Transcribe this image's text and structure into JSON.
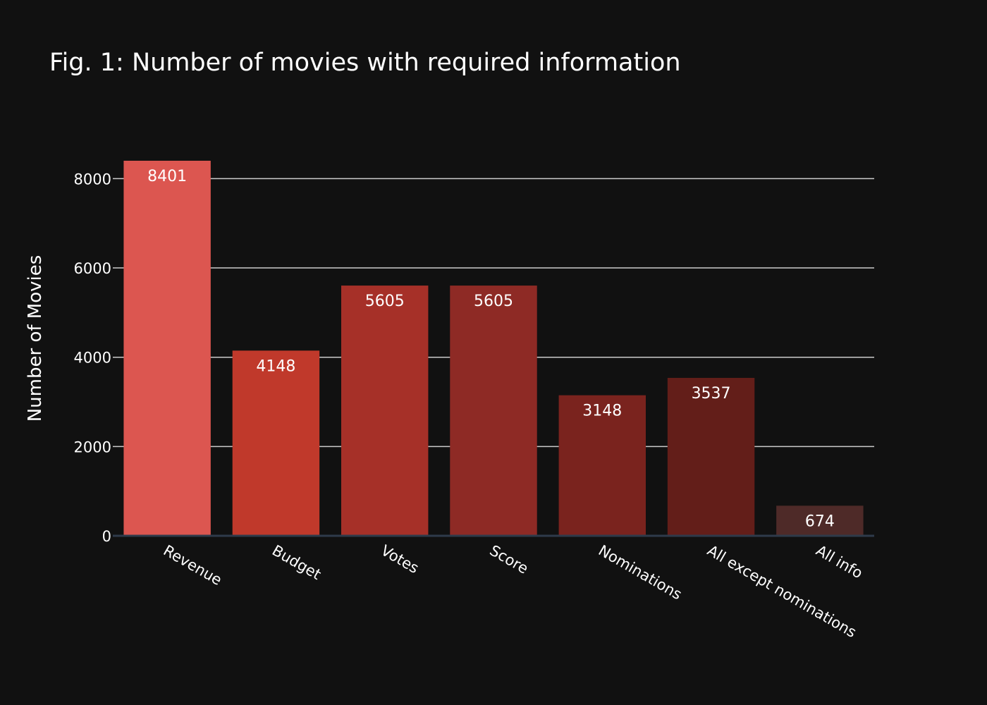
{
  "chart_data": {
    "type": "bar",
    "title": "Fig. 1: Number of movies with required information",
    "xlabel": "",
    "ylabel": "Number of Movies",
    "categories": [
      "Revenue",
      "Budget",
      "Votes",
      "Score",
      "Nominations",
      "All except nominations",
      "All info"
    ],
    "values": [
      8401,
      4148,
      5605,
      5605,
      3148,
      3537,
      674
    ],
    "data_labels": [
      "8401",
      "4148",
      "5605",
      "5605",
      "3148",
      "3537",
      "674"
    ],
    "bar_colors": [
      "#dc5650",
      "#c0392b",
      "#a63028",
      "#8e2a25",
      "#7a231e",
      "#631e19",
      "#4e2a28"
    ],
    "yticks": [
      0,
      2000,
      4000,
      6000,
      8000
    ],
    "ytick_labels": [
      "0",
      "2000",
      "4000",
      "6000",
      "8000"
    ],
    "ylim": [
      0,
      8401
    ],
    "grid": true,
    "legend": "none",
    "colors": {
      "background": "#111111",
      "grid": "#cccccc",
      "zero_line": "#2e3a4a",
      "text": "#ffffff"
    }
  }
}
